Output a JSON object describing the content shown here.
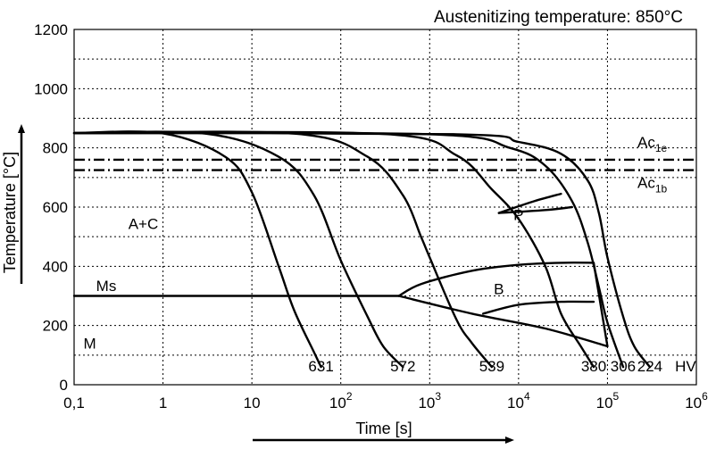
{
  "chart_data": {
    "type": "line",
    "title": "Austenitizing temperature: 850°C",
    "xlabel": "Time [s]",
    "ylabel": "Temperature [°C]",
    "xscale": "log",
    "xlim": [
      0.1,
      1000000
    ],
    "ylim": [
      0,
      1200
    ],
    "x_ticks": [
      {
        "value": 0.1,
        "label": "0,1"
      },
      {
        "value": 1,
        "label": "1"
      },
      {
        "value": 10,
        "label": "10"
      },
      {
        "value": 100,
        "label": "10",
        "sup": "2"
      },
      {
        "value": 1000,
        "label": "10",
        "sup": "3"
      },
      {
        "value": 10000,
        "label": "10",
        "sup": "4"
      },
      {
        "value": 100000,
        "label": "10",
        "sup": "5"
      },
      {
        "value": 1000000,
        "label": "10",
        "sup": "6"
      }
    ],
    "y_ticks": [
      0,
      200,
      400,
      600,
      800,
      1000,
      1200
    ],
    "x_grid": [
      1,
      10,
      100,
      1000,
      10000,
      100000
    ],
    "y_grid": [
      100,
      200,
      300,
      400,
      500,
      600,
      700,
      800,
      900,
      1000,
      1100
    ],
    "grid": true,
    "reference_lines": [
      {
        "name": "Ac1e",
        "main": "Ac",
        "sub": "1e",
        "y": 760
      },
      {
        "name": "Ac1b",
        "main": "Ac",
        "sub": "1b",
        "y": 725
      }
    ],
    "cooling_curves": [
      {
        "hardness": "631",
        "points": [
          [
            0.1,
            850
          ],
          [
            1,
            849
          ],
          [
            5,
            770
          ],
          [
            10,
            650
          ],
          [
            20,
            400
          ],
          [
            30,
            250
          ],
          [
            50,
            110
          ],
          [
            60,
            60
          ]
        ]
      },
      {
        "hardness": "572",
        "points": [
          [
            0.1,
            850
          ],
          [
            3,
            848
          ],
          [
            20,
            770
          ],
          [
            50,
            640
          ],
          [
            100,
            420
          ],
          [
            200,
            230
          ],
          [
            300,
            130
          ],
          [
            500,
            60
          ]
        ]
      },
      {
        "hardness": "539",
        "points": [
          [
            0.1,
            850
          ],
          [
            30,
            848
          ],
          [
            200,
            770
          ],
          [
            500,
            640
          ],
          [
            800,
            500
          ],
          [
            1000,
            430
          ],
          [
            2000,
            220
          ],
          [
            3000,
            140
          ],
          [
            5000,
            60
          ]
        ]
      },
      {
        "hardness": "380",
        "points": [
          [
            0.1,
            850
          ],
          [
            300,
            847
          ],
          [
            2000,
            775
          ],
          [
            5000,
            660
          ],
          [
            10000,
            560
          ],
          [
            20000,
            400
          ],
          [
            30000,
            240
          ],
          [
            50000,
            130
          ],
          [
            70000,
            60
          ]
        ]
      },
      {
        "hardness": "306",
        "points": [
          [
            0.1,
            850
          ],
          [
            1000,
            846
          ],
          [
            8000,
            800
          ],
          [
            20000,
            740
          ],
          [
            40000,
            620
          ],
          [
            60000,
            480
          ],
          [
            80000,
            330
          ],
          [
            100000,
            210
          ],
          [
            150000,
            60
          ]
        ]
      },
      {
        "hardness": "224",
        "points": [
          [
            0.1,
            850
          ],
          [
            2000,
            846
          ],
          [
            10000,
            820
          ],
          [
            30000,
            780
          ],
          [
            60000,
            690
          ],
          [
            80000,
            580
          ],
          [
            100000,
            430
          ],
          [
            150000,
            230
          ],
          [
            200000,
            130
          ],
          [
            300000,
            60
          ]
        ]
      }
    ],
    "hardness_unit": "HV",
    "ms_line": {
      "y": 300,
      "from": 0.1,
      "to": 450
    },
    "regions": {
      "bainite_upper": [
        [
          450,
          300
        ],
        [
          800,
          340
        ],
        [
          3000,
          385
        ],
        [
          10000,
          405
        ],
        [
          30000,
          412
        ],
        [
          70000,
          412
        ]
      ],
      "bainite_lower": [
        [
          450,
          300
        ],
        [
          3000,
          240
        ],
        [
          20000,
          190
        ],
        [
          100000,
          130
        ]
      ],
      "bainite_inner": [
        [
          4000,
          240
        ],
        [
          10000,
          270
        ],
        [
          30000,
          280
        ],
        [
          70000,
          280
        ]
      ],
      "bainite_end": [
        [
          70000,
          412
        ],
        [
          100000,
          130
        ]
      ],
      "pearlite_start": [
        [
          6000,
          580
        ],
        [
          15000,
          620
        ],
        [
          30000,
          645
        ]
      ],
      "pearlite_end": [
        [
          6000,
          580
        ],
        [
          20000,
          590
        ],
        [
          40000,
          600
        ]
      ]
    },
    "region_labels": {
      "austenite_carbide": "A+C",
      "ms": "Ms",
      "martensite": "M",
      "bainite": "B",
      "pearlite": "P"
    }
  }
}
